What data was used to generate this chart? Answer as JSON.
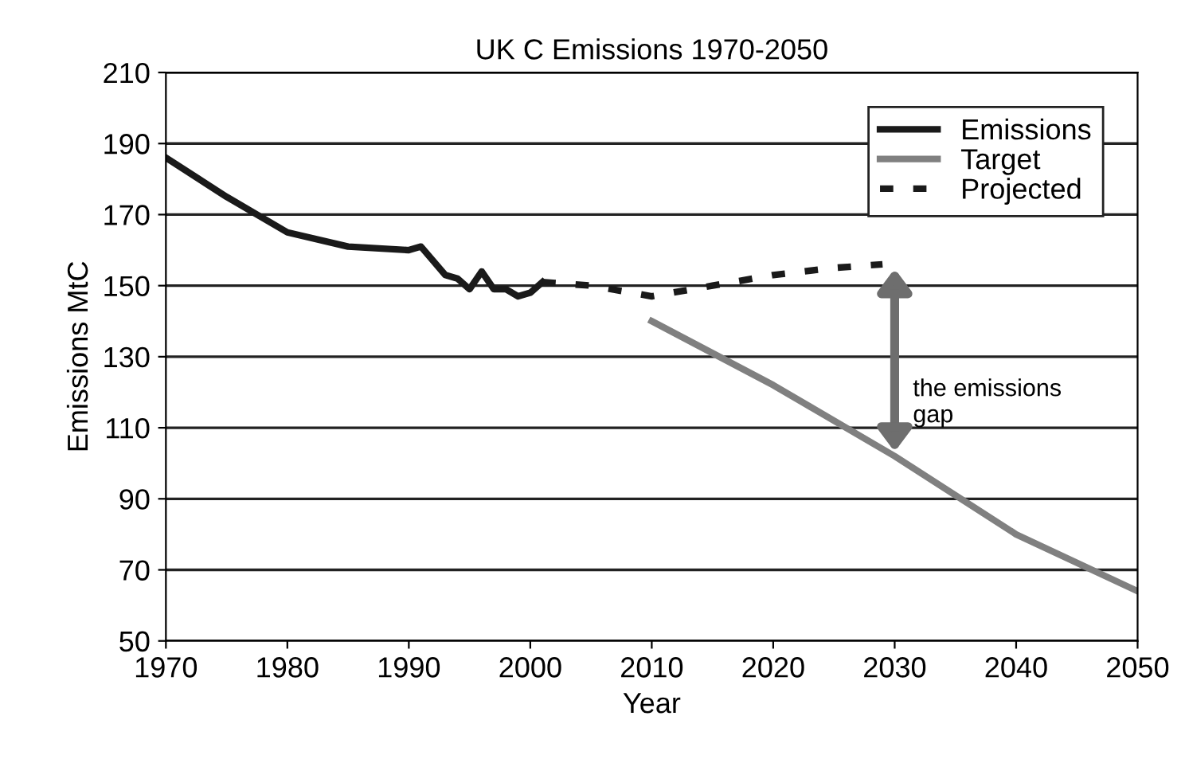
{
  "chart_data": {
    "type": "line",
    "title": "UK C Emissions 1970-2050",
    "xlabel": "Year",
    "ylabel": "Emissions MtC",
    "series": [
      {
        "name": "Emissions",
        "color": "#1a1a1a",
        "line_style": "solid",
        "x": [
          1970,
          1975,
          1980,
          1985,
          1990,
          1991,
          1993,
          1994,
          1995,
          1996,
          1997,
          1998,
          1999,
          2000,
          2001
        ],
        "values": [
          186,
          175,
          165,
          161,
          160,
          161,
          153,
          152,
          149,
          154,
          149,
          149,
          147,
          148,
          151
        ]
      },
      {
        "name": "Target",
        "color": "#808080",
        "line_style": "solid",
        "x": [
          2010,
          2020,
          2030,
          2040,
          2050
        ],
        "values": [
          140,
          122,
          102,
          80,
          64
        ]
      },
      {
        "name": "Projected",
        "color": "#1a1a1a",
        "line_style": "dashed",
        "x": [
          2001,
          2005,
          2010,
          2015,
          2020,
          2025,
          2029
        ],
        "values": [
          151,
          150,
          147,
          150,
          153,
          155,
          156
        ]
      }
    ],
    "annotations": [
      {
        "text": "the emissions\ngap",
        "x": 2030,
        "y": 102
      }
    ],
    "xlim": [
      1970,
      2050
    ],
    "xticks": [
      1970,
      1980,
      1990,
      2000,
      2010,
      2020,
      2030,
      2040,
      2050
    ],
    "ylim": [
      50,
      210
    ],
    "yticks": [
      50,
      70,
      90,
      110,
      130,
      150,
      170,
      190,
      210
    ],
    "grid": "y",
    "legend": "top right",
    "marker": "none"
  }
}
